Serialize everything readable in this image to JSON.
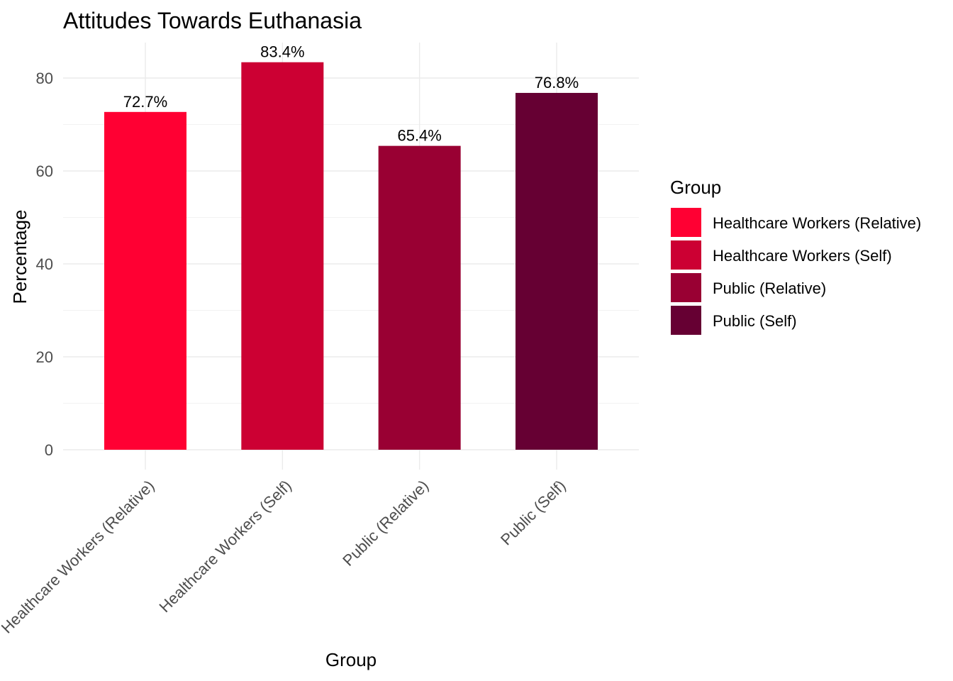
{
  "chart_data": {
    "type": "bar",
    "title": "Attitudes Towards Euthanasia",
    "xlabel": "Group",
    "ylabel": "Percentage",
    "categories": [
      "Healthcare Workers (Relative)",
      "Healthcare Workers (Self)",
      "Public (Relative)",
      "Public (Self)"
    ],
    "values": [
      72.7,
      83.4,
      65.4,
      76.8
    ],
    "data_labels": [
      "72.7%",
      "83.4%",
      "65.4%",
      "76.8%"
    ],
    "colors": [
      "#ff0033",
      "#cc0033",
      "#990033",
      "#660033"
    ],
    "ylim": [
      0,
      87
    ],
    "yticks": [
      0,
      20,
      40,
      60,
      80
    ],
    "ytick_labels": [
      "0",
      "20",
      "40",
      "60",
      "80"
    ],
    "grid": true,
    "legend": {
      "title": "Group",
      "placement": "right",
      "entries": [
        "Healthcare Workers (Relative)",
        "Healthcare Workers (Self)",
        "Public (Relative)",
        "Public (Self)"
      ]
    }
  }
}
